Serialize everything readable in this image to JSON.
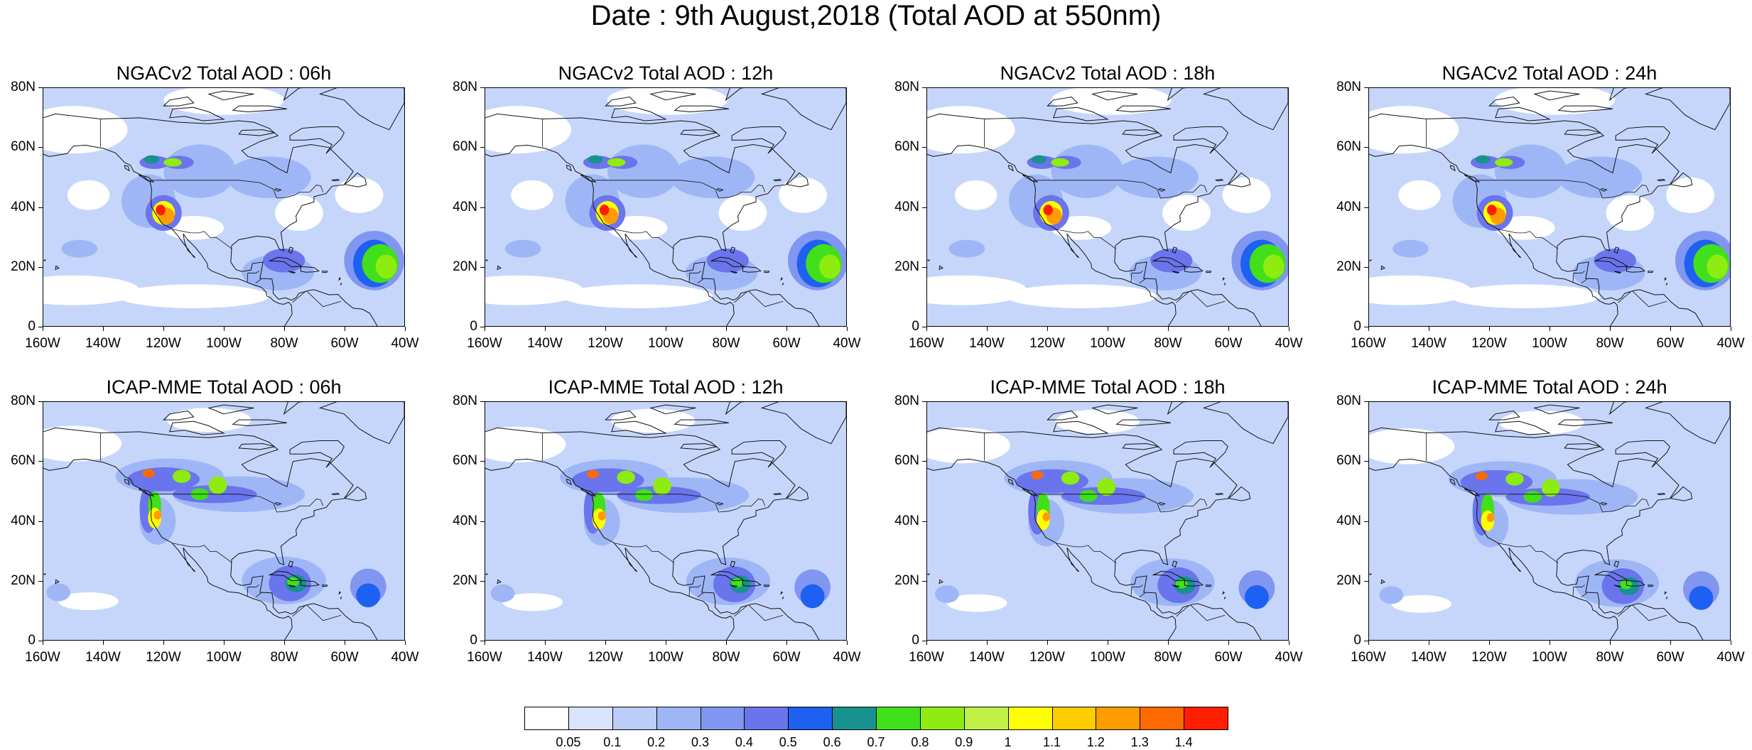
{
  "title": "Date : 9th August,2018 (Total AOD at 550nm)",
  "x_ticks": [
    "160W",
    "140W",
    "120W",
    "100W",
    "80W",
    "60W",
    "40W"
  ],
  "y_ticks": [
    "80N",
    "60N",
    "40N",
    "20N",
    "0"
  ],
  "panels": [
    {
      "id": "ngac-06",
      "title": "NGACv2 Total AOD : 06h",
      "model": "ngac",
      "lead": 0
    },
    {
      "id": "ngac-12",
      "title": "NGACv2 Total AOD : 12h",
      "model": "ngac",
      "lead": 1
    },
    {
      "id": "ngac-18",
      "title": "NGACv2 Total AOD : 18h",
      "model": "ngac",
      "lead": 2
    },
    {
      "id": "ngac-24",
      "title": "NGACv2 Total AOD : 24h",
      "model": "ngac",
      "lead": 3
    },
    {
      "id": "icap-06",
      "title": "ICAP-MME Total AOD : 06h",
      "model": "icap",
      "lead": 0
    },
    {
      "id": "icap-12",
      "title": "ICAP-MME Total AOD : 12h",
      "model": "icap",
      "lead": 1
    },
    {
      "id": "icap-18",
      "title": "ICAP-MME Total AOD : 18h",
      "model": "icap",
      "lead": 2
    },
    {
      "id": "icap-24",
      "title": "ICAP-MME Total AOD : 24h",
      "model": "icap",
      "lead": 3
    }
  ],
  "colorbar": {
    "colors": [
      "#ffffff",
      "#d9e3fc",
      "#bccdf9",
      "#9fb6f6",
      "#8196f1",
      "#6a74ec",
      "#1e60f2",
      "#17928e",
      "#42e01a",
      "#8fec11",
      "#c0f045",
      "#ffff00",
      "#ffcc00",
      "#ff9c00",
      "#ff6a00",
      "#ff1e00"
    ],
    "labels": [
      "0.05",
      "0.1",
      "0.2",
      "0.3",
      "0.4",
      "0.5",
      "0.6",
      "0.7",
      "0.8",
      "0.9",
      "1",
      "1.1",
      "1.2",
      "1.3",
      "1.4"
    ]
  },
  "map_domain": {
    "lon": [
      -160,
      -40
    ],
    "lat": [
      0,
      80
    ]
  }
}
